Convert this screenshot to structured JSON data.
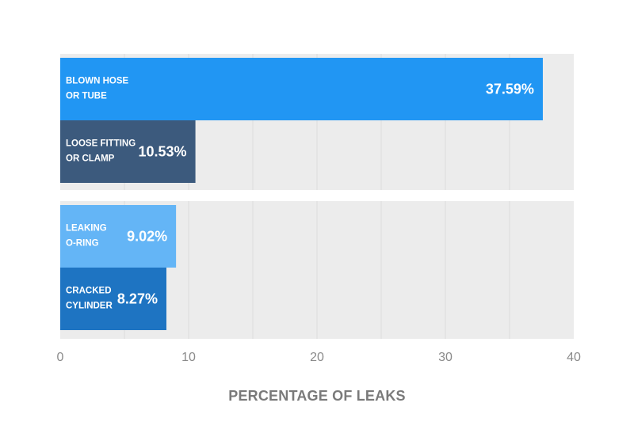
{
  "chart_data": {
    "type": "bar",
    "orientation": "horizontal",
    "xlabel": "PERCENTAGE OF LEAKS",
    "xlim": [
      0,
      40
    ],
    "x_ticks": [
      "0",
      "10",
      "20",
      "30",
      "40"
    ],
    "grid": true,
    "groups": [
      {
        "bars": [
          {
            "label": [
              "BLOWN HOSE",
              "OR TUBE"
            ],
            "value": 37.59,
            "value_label": "37.59%",
            "color": "#2196f3"
          },
          {
            "label": [
              "LOOSE FITTING",
              "OR CLAMP"
            ],
            "value": 10.53,
            "value_label": "10.53%",
            "color": "#3c5a7d"
          }
        ]
      },
      {
        "bars": [
          {
            "label": [
              "LEAKING",
              "O-RING"
            ],
            "value": 9.02,
            "value_label": "9.02%",
            "color": "#64b5f6"
          },
          {
            "label": [
              "CRACKED",
              "CYLINDER"
            ],
            "value": 8.27,
            "value_label": "8.27%",
            "color": "#1e74c2"
          }
        ]
      }
    ]
  }
}
